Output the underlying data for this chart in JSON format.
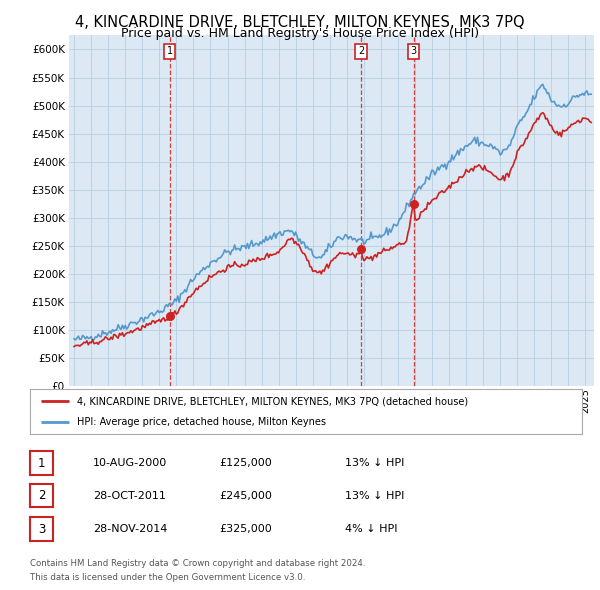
{
  "title": "4, KINCARDINE DRIVE, BLETCHLEY, MILTON KEYNES, MK3 7PQ",
  "subtitle": "Price paid vs. HM Land Registry's House Price Index (HPI)",
  "title_fontsize": 10.5,
  "subtitle_fontsize": 9,
  "ylim": [
    0,
    625000
  ],
  "yticks": [
    0,
    50000,
    100000,
    150000,
    200000,
    250000,
    300000,
    350000,
    400000,
    450000,
    500000,
    550000,
    600000
  ],
  "background_color": "#ffffff",
  "plot_bg_color": "#dce9f5",
  "grid_color": "#b8cfe0",
  "red_line_color": "#cc2222",
  "blue_line_color": "#5599cc",
  "sale_marker_color": "#cc2222",
  "vline_color": "#cc2222",
  "purchases": [
    {
      "date_num": 2000.61,
      "price": 125000,
      "label": "1"
    },
    {
      "date_num": 2011.83,
      "price": 245000,
      "label": "2"
    },
    {
      "date_num": 2014.92,
      "price": 325000,
      "label": "3"
    }
  ],
  "legend_entries": [
    {
      "label": "4, KINCARDINE DRIVE, BLETCHLEY, MILTON KEYNES, MK3 7PQ (detached house)",
      "color": "#cc2222"
    },
    {
      "label": "HPI: Average price, detached house, Milton Keynes",
      "color": "#5599cc"
    }
  ],
  "table_rows": [
    {
      "num": "1",
      "date": "10-AUG-2000",
      "price": "£125,000",
      "pct": "13% ↓ HPI"
    },
    {
      "num": "2",
      "date": "28-OCT-2011",
      "price": "£245,000",
      "pct": "13% ↓ HPI"
    },
    {
      "num": "3",
      "date": "28-NOV-2014",
      "price": "£325,000",
      "pct": "4% ↓ HPI"
    }
  ],
  "footer": "Contains HM Land Registry data © Crown copyright and database right 2024.\nThis data is licensed under the Open Government Licence v3.0.",
  "xmin": 1994.7,
  "xmax": 2025.5,
  "hpi_key_points": [
    [
      1995.0,
      83000
    ],
    [
      1996.0,
      88000
    ],
    [
      1997.0,
      97000
    ],
    [
      1998.0,
      108000
    ],
    [
      1999.0,
      120000
    ],
    [
      2000.0,
      133000
    ],
    [
      2001.0,
      152000
    ],
    [
      2002.0,
      192000
    ],
    [
      2003.0,
      220000
    ],
    [
      2004.0,
      240000
    ],
    [
      2005.0,
      248000
    ],
    [
      2006.0,
      258000
    ],
    [
      2007.0,
      272000
    ],
    [
      2007.7,
      278000
    ],
    [
      2008.5,
      252000
    ],
    [
      2009.0,
      235000
    ],
    [
      2009.5,
      228000
    ],
    [
      2010.0,
      248000
    ],
    [
      2010.5,
      265000
    ],
    [
      2011.0,
      268000
    ],
    [
      2011.5,
      262000
    ],
    [
      2012.0,
      258000
    ],
    [
      2012.5,
      262000
    ],
    [
      2013.0,
      268000
    ],
    [
      2013.5,
      278000
    ],
    [
      2014.0,
      292000
    ],
    [
      2015.0,
      345000
    ],
    [
      2016.0,
      378000
    ],
    [
      2017.0,
      402000
    ],
    [
      2018.0,
      428000
    ],
    [
      2018.5,
      438000
    ],
    [
      2019.0,
      432000
    ],
    [
      2019.5,
      428000
    ],
    [
      2020.0,
      415000
    ],
    [
      2020.5,
      425000
    ],
    [
      2021.0,
      462000
    ],
    [
      2021.5,
      485000
    ],
    [
      2022.0,
      515000
    ],
    [
      2022.5,
      538000
    ],
    [
      2023.0,
      510000
    ],
    [
      2023.5,
      498000
    ],
    [
      2024.0,
      505000
    ],
    [
      2024.5,
      518000
    ],
    [
      2025.0,
      522000
    ],
    [
      2025.3,
      518000
    ]
  ],
  "prop_key_points": [
    [
      1995.0,
      72000
    ],
    [
      1996.0,
      77000
    ],
    [
      1997.0,
      85000
    ],
    [
      1998.0,
      94000
    ],
    [
      1999.0,
      105000
    ],
    [
      2000.0,
      116000
    ],
    [
      2000.61,
      125000
    ],
    [
      2001.0,
      132000
    ],
    [
      2002.0,
      168000
    ],
    [
      2003.0,
      195000
    ],
    [
      2004.0,
      212000
    ],
    [
      2005.0,
      218000
    ],
    [
      2006.0,
      228000
    ],
    [
      2007.0,
      240000
    ],
    [
      2007.7,
      265000
    ],
    [
      2008.3,
      248000
    ],
    [
      2009.0,
      208000
    ],
    [
      2009.5,
      202000
    ],
    [
      2010.0,
      220000
    ],
    [
      2010.5,
      235000
    ],
    [
      2011.0,
      238000
    ],
    [
      2011.5,
      230000
    ],
    [
      2011.83,
      245000
    ],
    [
      2012.0,
      225000
    ],
    [
      2012.5,
      230000
    ],
    [
      2013.0,
      238000
    ],
    [
      2013.5,
      245000
    ],
    [
      2014.0,
      252000
    ],
    [
      2014.5,
      258000
    ],
    [
      2014.92,
      325000
    ],
    [
      2015.0,
      295000
    ],
    [
      2016.0,
      330000
    ],
    [
      2017.0,
      355000
    ],
    [
      2018.0,
      382000
    ],
    [
      2018.5,
      392000
    ],
    [
      2019.0,
      388000
    ],
    [
      2019.5,
      380000
    ],
    [
      2020.0,
      368000
    ],
    [
      2020.5,
      378000
    ],
    [
      2021.0,
      415000
    ],
    [
      2021.5,
      440000
    ],
    [
      2022.0,
      468000
    ],
    [
      2022.5,
      488000
    ],
    [
      2023.0,
      462000
    ],
    [
      2023.5,
      448000
    ],
    [
      2024.0,
      460000
    ],
    [
      2024.5,
      472000
    ],
    [
      2025.0,
      478000
    ],
    [
      2025.3,
      472000
    ]
  ]
}
